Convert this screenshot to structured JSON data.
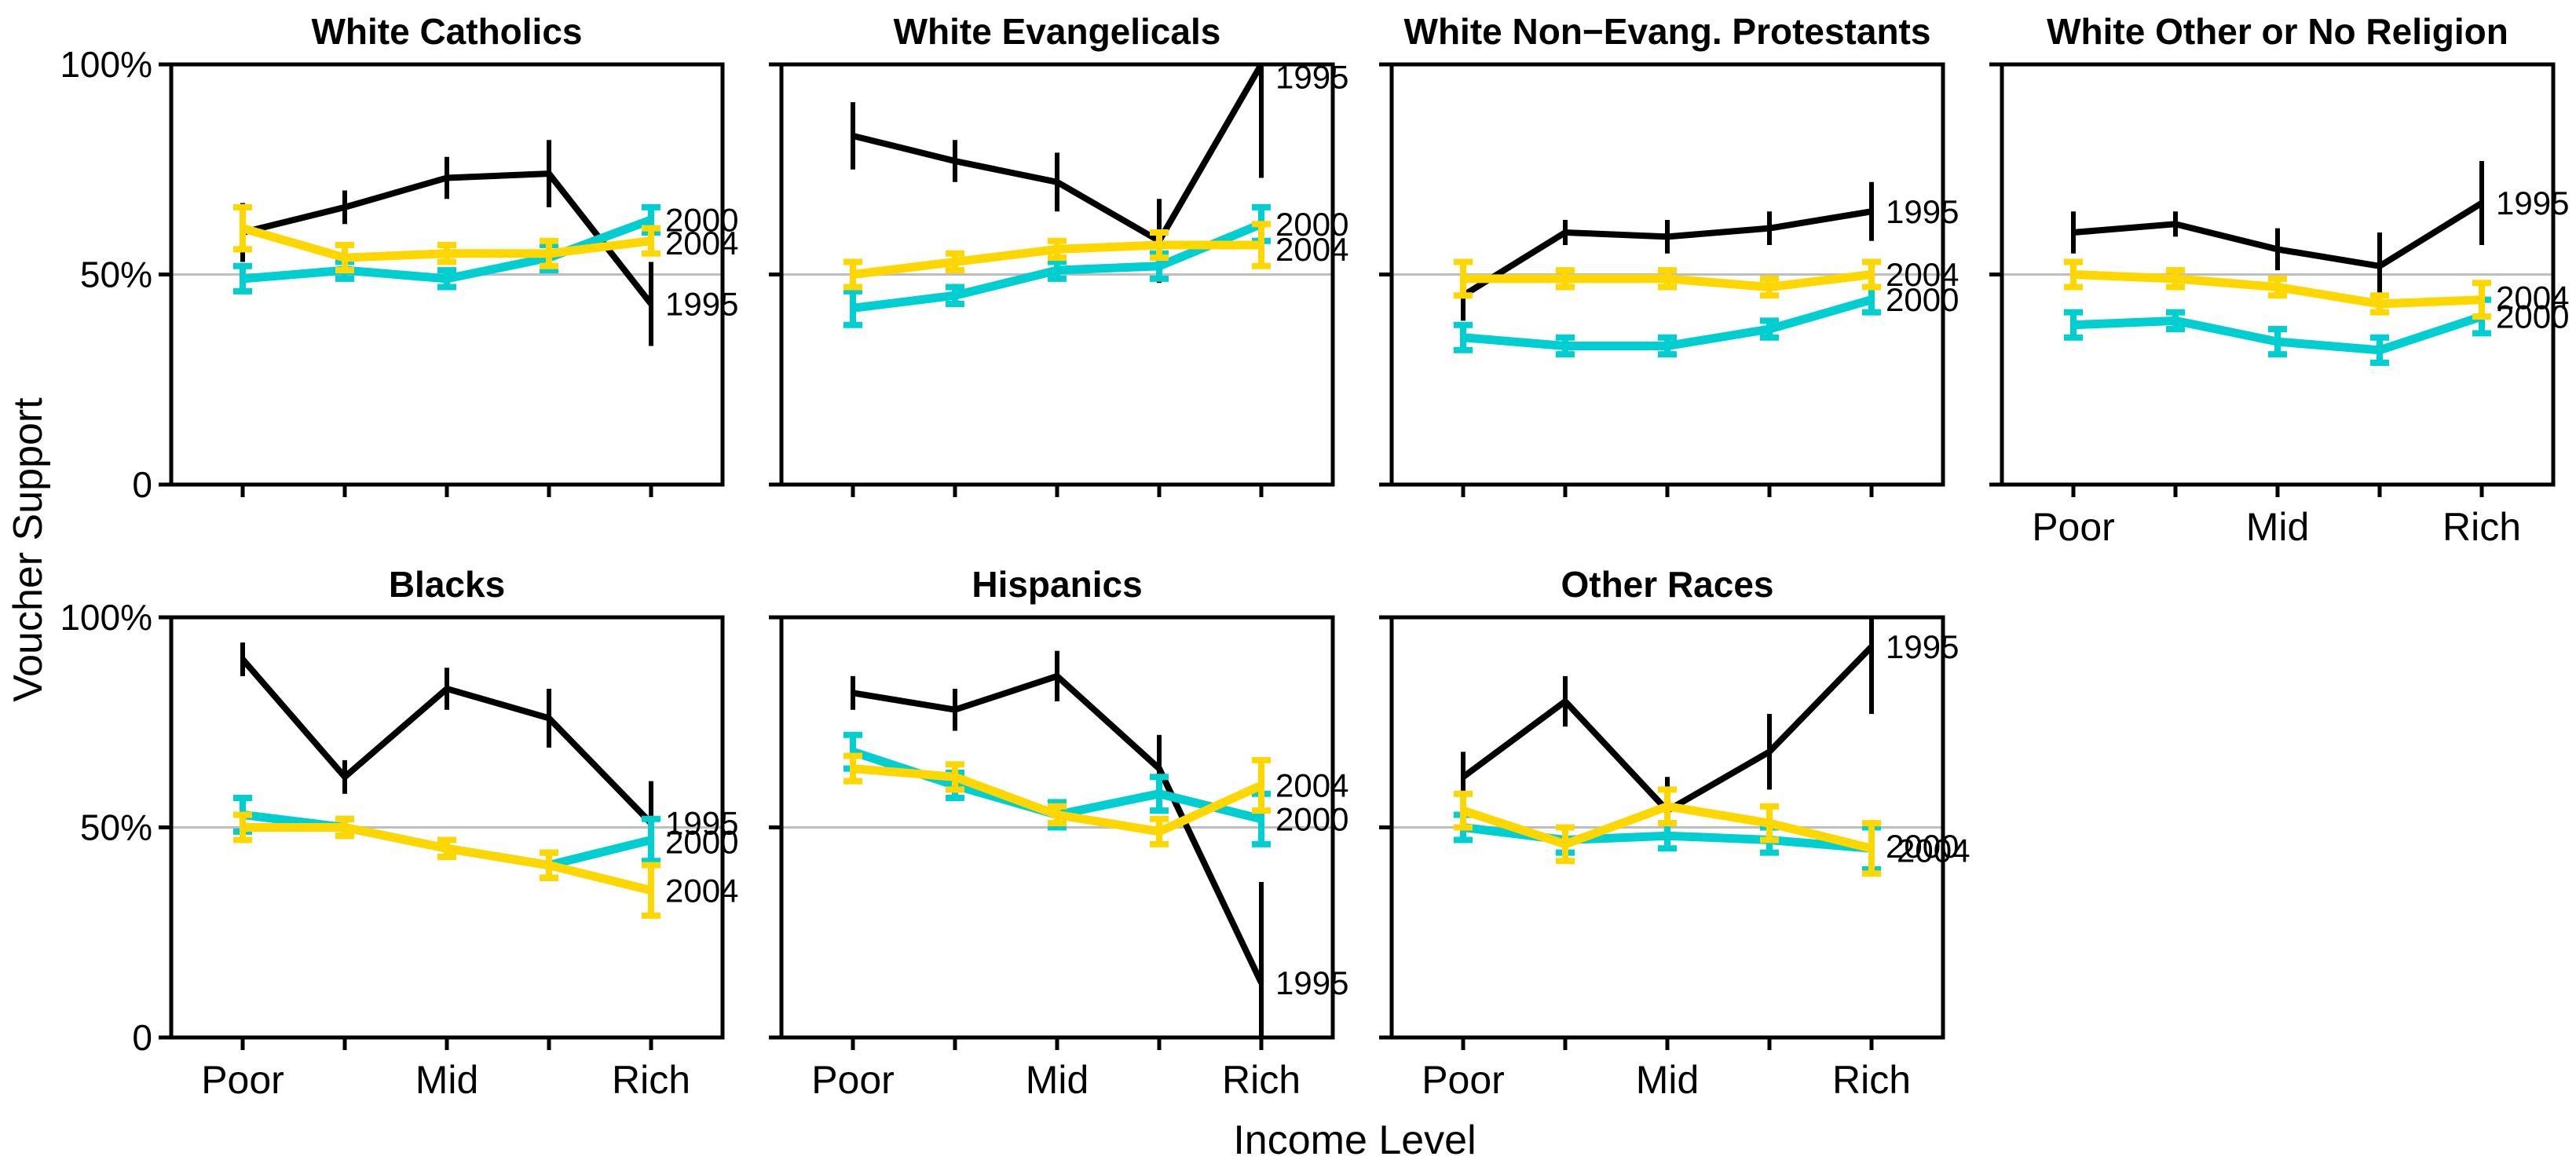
{
  "figure_colors": {
    "series_1995": "#000000",
    "series_2000": "#00CED1",
    "series_2004": "#FFD700",
    "gridline": "#BEBEBE",
    "axis": "#000000",
    "background": "#FFFFFF"
  },
  "chart_data": {
    "type": "line",
    "layout": "small-multiples",
    "rows": 2,
    "cols": 4,
    "title": "",
    "ylabel": "Voucher Support",
    "xlabel": "Income Level",
    "ylim": [
      0,
      100
    ],
    "reference_line_y": 50,
    "grid": "horizontal-50-only",
    "legend_position": "line-end-labels",
    "y_tick_labels": [
      {
        "text": "100%",
        "value": 100
      },
      {
        "text": "50%",
        "value": 50
      },
      {
        "text": "0",
        "value": 0
      }
    ],
    "x_categories": [
      "Poor",
      "",
      "Mid",
      "",
      "Rich"
    ],
    "x_tick_labels_shown": [
      {
        "text": "Poor",
        "index": 0
      },
      {
        "text": "Mid",
        "index": 2
      },
      {
        "text": "Rich",
        "index": 4
      }
    ],
    "panels": [
      {
        "title": "White Catholics",
        "row": 0,
        "col": 0,
        "show_x_labels": false,
        "show_y_labels": true,
        "series": [
          {
            "name": "1995",
            "color_key": "series_1995",
            "error_caps": false,
            "values": [
              60,
              66,
              73,
              74,
              43
            ],
            "err": [
              7,
              4,
              5,
              8,
              10
            ],
            "end_label": {
              "text": "1995",
              "y": 43,
              "dx": 0
            }
          },
          {
            "name": "2000",
            "color_key": "series_2000",
            "error_caps": true,
            "values": [
              49,
              51,
              49,
              54,
              63
            ],
            "err": [
              3,
              2,
              2,
              3,
              3
            ],
            "end_label": {
              "text": "2000",
              "y": 63,
              "dx": 0
            }
          },
          {
            "name": "2004",
            "color_key": "series_2004",
            "error_caps": true,
            "values": [
              61,
              54,
              55,
              55,
              58
            ],
            "err": [
              5,
              3,
              2,
              3,
              3
            ],
            "end_label": {
              "text": "2004",
              "y": 57.5,
              "dx": 0
            }
          }
        ]
      },
      {
        "title": "White Evangelicals",
        "row": 0,
        "col": 1,
        "show_x_labels": false,
        "show_y_labels": false,
        "series": [
          {
            "name": "1995",
            "color_key": "series_1995",
            "error_caps": false,
            "values": [
              83,
              77,
              72,
              58,
              100
            ],
            "err": [
              8,
              5,
              7,
              10,
              [
                27,
                0
              ]
            ],
            "end_label": {
              "text": "1995",
              "y": 97,
              "dx": 0
            }
          },
          {
            "name": "2000",
            "color_key": "series_2000",
            "error_caps": true,
            "values": [
              42,
              45,
              51,
              52,
              62
            ],
            "err": [
              4,
              2,
              2,
              3,
              4
            ],
            "end_label": {
              "text": "2000",
              "y": 62,
              "dx": 0
            }
          },
          {
            "name": "2004",
            "color_key": "series_2004",
            "error_caps": true,
            "values": [
              50,
              53,
              56,
              57,
              57
            ],
            "err": [
              3,
              2,
              2,
              3,
              5
            ],
            "end_label": {
              "text": "2004",
              "y": 56,
              "dx": 0
            }
          }
        ]
      },
      {
        "title": "White Non−Evang. Protestants",
        "row": 0,
        "col": 2,
        "show_x_labels": false,
        "show_y_labels": false,
        "series": [
          {
            "name": "1995",
            "color_key": "series_1995",
            "error_caps": false,
            "values": [
              45,
              60,
              59,
              61,
              65
            ],
            "err": [
              6,
              3,
              4,
              4,
              7
            ],
            "end_label": {
              "text": "1995",
              "y": 65,
              "dx": 0
            }
          },
          {
            "name": "2000",
            "color_key": "series_2000",
            "error_caps": true,
            "values": [
              35,
              33,
              33,
              37,
              44
            ],
            "err": [
              3,
              2,
              2,
              2,
              3
            ],
            "end_label": {
              "text": "2000",
              "y": 44,
              "dx": 0
            }
          },
          {
            "name": "2004",
            "color_key": "series_2004",
            "error_caps": true,
            "values": [
              49,
              49,
              49,
              47,
              50
            ],
            "err": [
              4,
              2,
              2,
              2,
              3
            ],
            "end_label": {
              "text": "2004",
              "y": 50,
              "dx": 0
            }
          }
        ]
      },
      {
        "title": "White Other or No Religion",
        "row": 0,
        "col": 3,
        "show_x_labels": true,
        "show_y_labels": false,
        "series": [
          {
            "name": "1995",
            "color_key": "series_1995",
            "error_caps": false,
            "values": [
              60,
              62,
              56,
              52,
              67
            ],
            "err": [
              5,
              3,
              5,
              8,
              10
            ],
            "end_label": {
              "text": "1995",
              "y": 67,
              "dx": 0
            }
          },
          {
            "name": "2000",
            "color_key": "series_2000",
            "error_caps": true,
            "values": [
              38,
              39,
              34,
              32,
              40
            ],
            "err": [
              3,
              2,
              3,
              3,
              4
            ],
            "end_label": {
              "text": "2000",
              "y": 40,
              "dx": 0
            }
          },
          {
            "name": "2004",
            "color_key": "series_2004",
            "error_caps": true,
            "values": [
              50,
              49,
              47,
              43,
              44
            ],
            "err": [
              3,
              2,
              2,
              2,
              4
            ],
            "end_label": {
              "text": "2004",
              "y": 44.5,
              "dx": 0
            }
          }
        ]
      },
      {
        "title": "Blacks",
        "row": 1,
        "col": 0,
        "show_x_labels": true,
        "show_y_labels": true,
        "series": [
          {
            "name": "1995",
            "color_key": "series_1995",
            "error_caps": false,
            "values": [
              90,
              62,
              83,
              76,
              51
            ],
            "err": [
              4,
              4,
              5,
              7,
              10
            ],
            "end_label": {
              "text": "1995",
              "y": 51,
              "dx": 0
            }
          },
          {
            "name": "2000",
            "color_key": "series_2000",
            "error_caps": true,
            "values": [
              53,
              50,
              45,
              41,
              47
            ],
            "err": [
              4,
              2,
              2,
              3,
              5
            ],
            "end_label": {
              "text": "2000",
              "y": 46.5,
              "dx": 0
            }
          },
          {
            "name": "2004",
            "color_key": "series_2004",
            "error_caps": true,
            "values": [
              50,
              50,
              45,
              41,
              35
            ],
            "err": [
              3,
              2,
              2,
              3,
              6
            ],
            "end_label": {
              "text": "2004",
              "y": 35,
              "dx": 0
            }
          }
        ]
      },
      {
        "title": "Hispanics",
        "row": 1,
        "col": 1,
        "show_x_labels": true,
        "show_y_labels": false,
        "series": [
          {
            "name": "1995",
            "color_key": "series_1995",
            "error_caps": false,
            "values": [
              82,
              78,
              86,
              64,
              13
            ],
            "err": [
              4,
              5,
              6,
              8,
              [
                13,
                24
              ]
            ],
            "end_label": {
              "text": "1995",
              "y": 13,
              "dx": 0
            }
          },
          {
            "name": "2000",
            "color_key": "series_2000",
            "error_caps": true,
            "values": [
              68,
              60,
              53,
              58,
              52
            ],
            "err": [
              4,
              3,
              3,
              4,
              6
            ],
            "end_label": {
              "text": "2000",
              "y": 52,
              "dx": 0
            }
          },
          {
            "name": "2004",
            "color_key": "series_2004",
            "error_caps": true,
            "values": [
              64,
              62,
              53,
              49,
              60
            ],
            "err": [
              3,
              3,
              2,
              3,
              6
            ],
            "end_label": {
              "text": "2004",
              "y": 60,
              "dx": 0
            }
          }
        ]
      },
      {
        "title": "Other Races",
        "row": 1,
        "col": 2,
        "show_x_labels": true,
        "show_y_labels": false,
        "series": [
          {
            "name": "1995",
            "color_key": "series_1995",
            "error_caps": false,
            "values": [
              62,
              80,
              54,
              68,
              93
            ],
            "err": [
              6,
              6,
              8,
              9,
              [
                16,
                10
              ]
            ],
            "end_label": {
              "text": "1995",
              "y": 93,
              "dx": 0
            }
          },
          {
            "name": "2000",
            "color_key": "series_2000",
            "error_caps": true,
            "values": [
              50,
              47,
              48,
              47,
              45
            ],
            "err": [
              3,
              3,
              3,
              3,
              5
            ],
            "end_label": {
              "text": "2000",
              "y": 45.5,
              "dx": 0
            }
          },
          {
            "name": "2004",
            "color_key": "series_2004",
            "error_caps": true,
            "values": [
              54,
              46,
              55,
              51,
              45
            ],
            "err": [
              4,
              4,
              4,
              4,
              6
            ],
            "end_label": {
              "text": "2004",
              "y": 44.5,
              "dx": 14
            }
          }
        ]
      }
    ]
  }
}
